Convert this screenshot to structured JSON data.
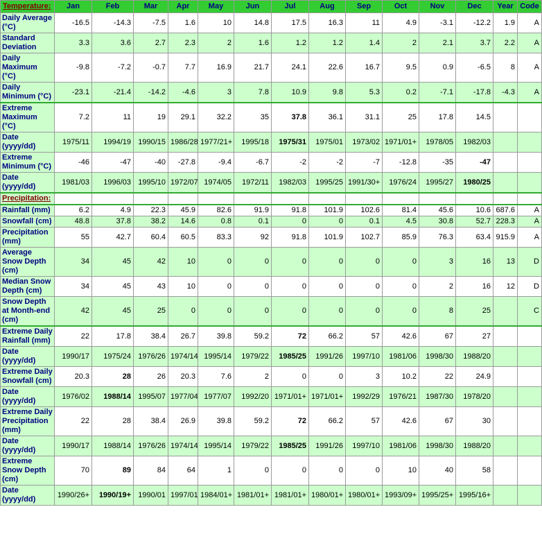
{
  "header": {
    "title": "Temperature:",
    "columns": [
      "Jan",
      "Feb",
      "Mar",
      "Apr",
      "May",
      "Jun",
      "Jul",
      "Aug",
      "Sep",
      "Oct",
      "Nov",
      "Dec",
      "Year",
      "Code"
    ]
  },
  "temperature_rows": [
    {
      "label": "Daily Average (°C)",
      "values": [
        -16.5,
        -14.3,
        -7.5,
        1.6,
        10,
        14.8,
        17.5,
        16.3,
        11,
        4.9,
        -3.1,
        -12.2
      ],
      "year": 1.9,
      "code": "A"
    },
    {
      "label": "Standard Deviation",
      "values": [
        3.3,
        3.6,
        2.7,
        2.3,
        2,
        1.6,
        1.2,
        1.2,
        1.4,
        2,
        2.1,
        3.7
      ],
      "year": 2.2,
      "code": "A"
    },
    {
      "label": "Daily Maximum (°C)",
      "values": [
        -9.8,
        -7.2,
        -0.7,
        7.7,
        16.9,
        21.7,
        24.1,
        22.6,
        16.7,
        9.5,
        0.9,
        -6.5
      ],
      "year": 8,
      "code": "A"
    },
    {
      "label": "Daily Minimum (°C)",
      "values": [
        -23.1,
        -21.4,
        -14.2,
        -4.6,
        3,
        7.8,
        10.9,
        9.8,
        5.3,
        0.2,
        -7.1,
        -17.8
      ],
      "year": -4.3,
      "code": "A"
    },
    {
      "label": "Extreme Maximum (°C)",
      "values": [
        7.2,
        11,
        19,
        29.1,
        32.2,
        35,
        37.8,
        36.1,
        31.1,
        25,
        17.8,
        14.5
      ],
      "bold": 6
    },
    {
      "label": "Date (yyyy/dd)",
      "values": [
        "1975/11",
        "1994/19",
        "1990/15",
        "1986/28",
        "1977/21+",
        "1995/18",
        "1975/31",
        "1975/01",
        "1973/02",
        "1971/01+",
        "1978/05",
        "1982/03"
      ],
      "bold": 6
    },
    {
      "label": "Extreme Minimum (°C)",
      "values": [
        -46,
        -47,
        -40,
        -27.8,
        -9.4,
        -6.7,
        -2,
        -2,
        -7,
        -12.8,
        -35,
        -47
      ],
      "bold": 11
    },
    {
      "label": "Date (yyyy/dd)",
      "values": [
        "1981/03",
        "1996/03",
        "1995/10",
        "1972/07",
        "1974/05",
        "1972/11",
        "1982/03",
        "1995/25",
        "1991/30+",
        "1976/24",
        "1995/27",
        "1980/25"
      ],
      "bold": 11
    }
  ],
  "precipitation_title": "Precipitation:",
  "precipitation_rows": [
    {
      "label": "Rainfall (mm)",
      "values": [
        6.2,
        4.9,
        22.3,
        45.9,
        82.6,
        91.9,
        91.8,
        101.9,
        102.6,
        81.4,
        45.6,
        10.6
      ],
      "year": 687.6,
      "code": "A"
    },
    {
      "label": "Snowfall (cm)",
      "values": [
        48.8,
        37.8,
        38.2,
        14.6,
        0.8,
        0.1,
        0,
        0,
        0.1,
        4.5,
        30.8,
        52.7
      ],
      "year": 228.3,
      "code": "A"
    },
    {
      "label": "Precipitation (mm)",
      "values": [
        55,
        42.7,
        60.4,
        60.5,
        83.3,
        92,
        91.8,
        101.9,
        102.7,
        85.9,
        76.3,
        63.4
      ],
      "year": 915.9,
      "code": "A"
    },
    {
      "label": "Average Snow Depth (cm)",
      "values": [
        34,
        45,
        42,
        10,
        0,
        0,
        0,
        0,
        0,
        0,
        3,
        16
      ],
      "year": 13,
      "code": "D"
    },
    {
      "label": "Median Snow Depth (cm)",
      "values": [
        34,
        45,
        43,
        10,
        0,
        0,
        0,
        0,
        0,
        0,
        2,
        16
      ],
      "year": 12,
      "code": "D"
    },
    {
      "label": "Snow Depth at Month-end (cm)",
      "values": [
        42,
        45,
        25,
        0,
        0,
        0,
        0,
        0,
        0,
        0,
        8,
        25
      ],
      "code": "C"
    },
    {
      "label": "Extreme Daily Rainfall (mm)",
      "values": [
        22,
        17.8,
        38.4,
        26.7,
        39.8,
        59.2,
        72,
        66.2,
        57,
        42.6,
        67,
        27
      ],
      "bold": 6
    },
    {
      "label": "Date (yyyy/dd)",
      "values": [
        "1990/17",
        "1975/24",
        "1976/26",
        "1974/14",
        "1995/14",
        "1979/22",
        "1985/25",
        "1991/26",
        "1997/10",
        "1981/06",
        "1998/30",
        "1988/20"
      ],
      "bold": 6
    },
    {
      "label": "Extreme Daily Snowfall (cm)",
      "values": [
        20.3,
        28,
        26,
        20.3,
        7.6,
        2,
        0,
        0,
        3,
        10.2,
        22,
        24.9
      ],
      "bold": 1
    },
    {
      "label": "Date (yyyy/dd)",
      "values": [
        "1976/02",
        "1988/14",
        "1995/07",
        "1977/04",
        "1977/07",
        "1992/20",
        "1971/01+",
        "1971/01+",
        "1992/29",
        "1976/21",
        "1987/30",
        "1978/20"
      ],
      "bold": 1
    },
    {
      "label": "Extreme Daily Precipitation (mm)",
      "values": [
        22,
        28,
        38.4,
        26.9,
        39.8,
        59.2,
        72,
        66.2,
        57,
        42.6,
        67,
        30
      ],
      "bold": 6
    },
    {
      "label": "Date (yyyy/dd)",
      "values": [
        "1990/17",
        "1988/14",
        "1976/26",
        "1974/14",
        "1995/14",
        "1979/22",
        "1985/25",
        "1991/26",
        "1997/10",
        "1981/06",
        "1998/30",
        "1988/20"
      ],
      "bold": 6
    },
    {
      "label": "Extreme Snow Depth (cm)",
      "values": [
        70,
        89,
        84,
        64,
        1,
        0,
        0,
        0,
        0,
        10,
        40,
        58
      ],
      "bold": 1
    },
    {
      "label": "Date (yyyy/dd)",
      "values": [
        "1990/26+",
        "1990/19+",
        "1990/01",
        "1997/01",
        "1984/01+",
        "1981/01+",
        "1981/01+",
        "1980/01+",
        "1980/01+",
        "1993/09+",
        "1995/25+",
        "1995/16+"
      ],
      "bold": 1
    }
  ]
}
